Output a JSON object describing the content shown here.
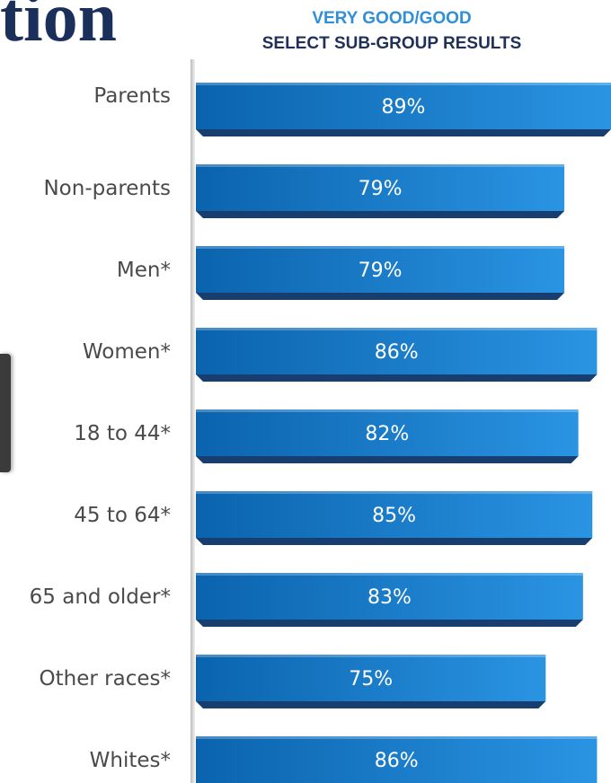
{
  "page": {
    "title_fragment": "tion"
  },
  "chart_data": {
    "type": "bar",
    "orientation": "horizontal",
    "title": "VERY GOOD/GOOD",
    "subtitle": "SELECT SUB-GROUP RESULTS",
    "categories": [
      "Parents",
      "Non-parents",
      "Men*",
      "Women*",
      "18 to 44*",
      "45 to 64*",
      "65 and older*",
      "Other races*",
      "Whites*"
    ],
    "values": [
      89,
      79,
      79,
      86,
      82,
      85,
      83,
      75,
      86
    ],
    "value_labels": [
      "89%",
      "79%",
      "79%",
      "86%",
      "82%",
      "85%",
      "83%",
      "75%",
      "86%"
    ],
    "unit": "%",
    "xlim": [
      0,
      89
    ],
    "grid": false,
    "legend": "none",
    "colors": {
      "bar_light": "#2a94e3",
      "bar_dark": "#0b63ad",
      "bar_shadow": "#173e6e",
      "title_accent": "#2f8fd8",
      "title_dark": "#1f3158"
    }
  }
}
